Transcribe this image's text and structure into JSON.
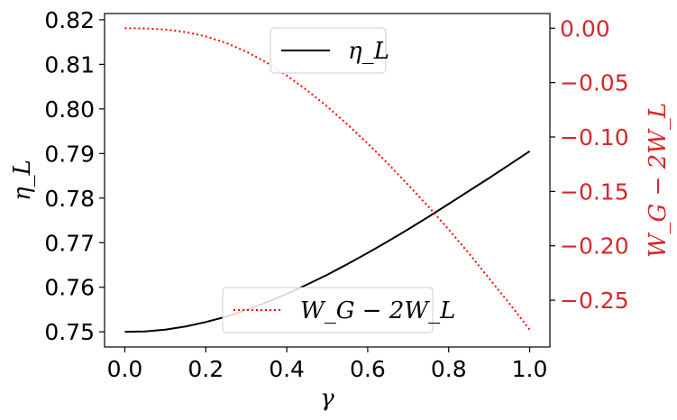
{
  "chart_data": {
    "type": "line",
    "x": [
      0.0,
      0.05,
      0.1,
      0.15,
      0.2,
      0.25,
      0.3,
      0.35,
      0.4,
      0.45,
      0.5,
      0.55,
      0.6,
      0.65,
      0.7,
      0.75,
      0.8,
      0.85,
      0.9,
      0.95,
      1.0
    ],
    "xlabel": "γ",
    "xlim": [
      -0.05,
      1.05
    ],
    "xticks": [
      0.0,
      0.2,
      0.4,
      0.6,
      0.8,
      1.0
    ],
    "xtick_labels": [
      "0.0",
      "0.2",
      "0.4",
      "0.6",
      "0.8",
      "1.0"
    ],
    "axes": {
      "left": {
        "label": "η_L",
        "color": "#000000",
        "ylim": [
          0.7466,
          0.8214
        ],
        "ticks": [
          0.75,
          0.76,
          0.77,
          0.78,
          0.79,
          0.8,
          0.81,
          0.82
        ],
        "tick_labels": [
          "0.75",
          "0.76",
          "0.77",
          "0.78",
          "0.79",
          "0.80",
          "0.81",
          "0.82"
        ]
      },
      "right": {
        "label": "W_G − 2W_L",
        "color": "#d62728",
        "ylim": [
          -0.293,
          0.0135
        ],
        "ticks": [
          0.0,
          -0.05,
          -0.1,
          -0.15,
          -0.2,
          -0.25
        ],
        "tick_labels": [
          "0.00",
          "−0.05",
          "−0.10",
          "−0.15",
          "−0.20",
          "−0.25"
        ]
      }
    },
    "series": [
      {
        "name": "η_L",
        "axis": "left",
        "color": "#000000",
        "style": "solid",
        "values": [
          0.75,
          0.7501,
          0.7505,
          0.7512,
          0.7522,
          0.7534,
          0.7549,
          0.7566,
          0.7585,
          0.7606,
          0.7628,
          0.7652,
          0.7677,
          0.7703,
          0.773,
          0.7758,
          0.7787,
          0.7816,
          0.7845,
          0.7875,
          0.7905
        ]
      },
      {
        "name": "W_G − 2W_L",
        "axis": "right",
        "color": "#ff0000",
        "style": "dotted",
        "values": [
          0.0,
          -0.0002,
          -0.0012,
          -0.0035,
          -0.0075,
          -0.0135,
          -0.0215,
          -0.0315,
          -0.0435,
          -0.057,
          -0.072,
          -0.0885,
          -0.106,
          -0.1245,
          -0.144,
          -0.164,
          -0.185,
          -0.207,
          -0.23,
          -0.253,
          -0.277
        ]
      }
    ],
    "legends": [
      {
        "placement": "upper-center",
        "entries": [
          "η_L"
        ]
      },
      {
        "placement": "lower-center",
        "entries": [
          "W_G − 2W_L"
        ]
      }
    ]
  }
}
